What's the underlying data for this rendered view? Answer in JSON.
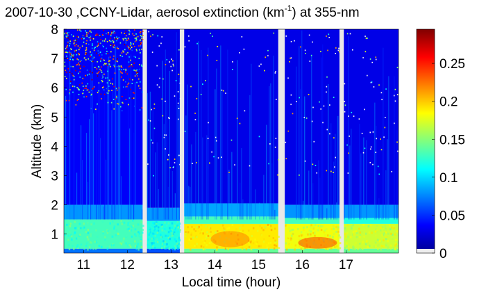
{
  "chart_data": {
    "type": "heatmap",
    "title_main": "2007-10-30 ,CCNY-Lidar, aerosol extinction (km",
    "title_sup": "-1",
    "title_end": ") at 355-nm",
    "xlabel": "Local time (hour)",
    "ylabel": "Altitude (km)",
    "xlim": [
      10.55,
      18.2
    ],
    "ylim": [
      0.35,
      8
    ],
    "x_ticks": [
      "11",
      "12",
      "13",
      "14",
      "15",
      "16",
      "17"
    ],
    "y_ticks": [
      "1",
      "2",
      "3",
      "4",
      "5",
      "6",
      "7",
      "8"
    ],
    "colorbar": {
      "range": [
        0,
        0.295
      ],
      "ticks": [
        "0",
        "0.05",
        "0.1",
        "0.15",
        "0.2",
        "0.25"
      ]
    },
    "data_gaps_hours": [
      [
        12.35,
        12.45
      ],
      [
        13.2,
        13.3
      ],
      [
        15.45,
        15.6
      ],
      [
        16.85,
        16.95
      ]
    ],
    "segments": [
      {
        "start": 10.55,
        "end": 12.35,
        "layers": [
          {
            "from": 0.35,
            "to": 0.5,
            "value": 0.07
          },
          {
            "from": 0.5,
            "to": 1.5,
            "value": 0.13
          },
          {
            "from": 1.5,
            "to": 2.0,
            "value": 0.08
          },
          {
            "from": 2.0,
            "to": 8.0,
            "value": 0.035
          }
        ],
        "noise_upper": "high"
      },
      {
        "start": 12.45,
        "end": 13.2,
        "layers": [
          {
            "from": 0.35,
            "to": 0.5,
            "value": 0.06
          },
          {
            "from": 0.5,
            "to": 1.45,
            "value": 0.12
          },
          {
            "from": 1.45,
            "to": 1.9,
            "value": 0.08
          },
          {
            "from": 1.9,
            "to": 8.0,
            "value": 0.03
          }
        ],
        "noise_upper": "low"
      },
      {
        "start": 13.3,
        "end": 15.45,
        "layers": [
          {
            "from": 0.35,
            "to": 0.5,
            "value": 0.14
          },
          {
            "from": 0.5,
            "to": 1.35,
            "value": 0.19
          },
          {
            "from": 1.35,
            "to": 1.6,
            "value": 0.13
          },
          {
            "from": 1.6,
            "to": 2.05,
            "value": 0.085
          },
          {
            "from": 2.05,
            "to": 8.0,
            "value": 0.03
          }
        ],
        "noise_upper": "low"
      },
      {
        "start": 15.6,
        "end": 16.85,
        "layers": [
          {
            "from": 0.35,
            "to": 0.5,
            "value": 0.14
          },
          {
            "from": 0.5,
            "to": 1.35,
            "value": 0.18
          },
          {
            "from": 1.35,
            "to": 1.55,
            "value": 0.13
          },
          {
            "from": 1.55,
            "to": 2.0,
            "value": 0.08
          },
          {
            "from": 2.0,
            "to": 8.0,
            "value": 0.03
          }
        ],
        "noise_upper": "low"
      },
      {
        "start": 16.95,
        "end": 18.2,
        "layers": [
          {
            "from": 0.35,
            "to": 0.5,
            "value": 0.14
          },
          {
            "from": 0.5,
            "to": 1.35,
            "value": 0.17
          },
          {
            "from": 1.35,
            "to": 1.55,
            "value": 0.12
          },
          {
            "from": 1.55,
            "to": 2.0,
            "value": 0.08
          },
          {
            "from": 2.0,
            "to": 8.0,
            "value": 0.03
          }
        ],
        "noise_upper": "low"
      }
    ],
    "features": [
      {
        "time": 14.35,
        "from": 0.55,
        "to": 1.1,
        "value": 0.22
      },
      {
        "time": 16.35,
        "from": 0.5,
        "to": 0.9,
        "value": 0.24
      }
    ]
  }
}
